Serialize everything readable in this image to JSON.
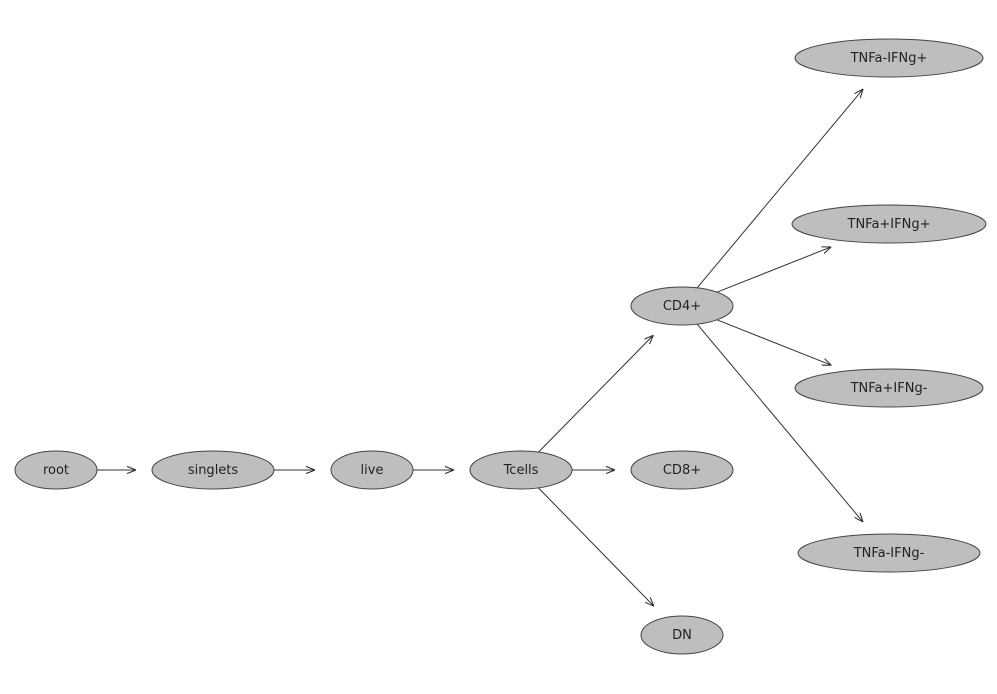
{
  "diagram": {
    "type": "directed-tree",
    "node_fill": "#bebebe",
    "node_stroke": "#444444",
    "edge_color": "#333333",
    "nodes": [
      {
        "id": "root",
        "label": "root"
      },
      {
        "id": "singlets",
        "label": "singlets"
      },
      {
        "id": "live",
        "label": "live"
      },
      {
        "id": "Tcells",
        "label": "Tcells"
      },
      {
        "id": "CD4+",
        "label": "CD4+"
      },
      {
        "id": "CD8+",
        "label": "CD8+"
      },
      {
        "id": "DN",
        "label": "DN"
      },
      {
        "id": "TNFa-IFNg+",
        "label": "TNFa-IFNg+"
      },
      {
        "id": "TNFa+IFNg+",
        "label": "TNFa+IFNg+"
      },
      {
        "id": "TNFa+IFNg-",
        "label": "TNFa+IFNg-"
      },
      {
        "id": "TNFa-IFNg-",
        "label": "TNFa-IFNg-"
      }
    ],
    "edges": [
      {
        "from": "root",
        "to": "singlets"
      },
      {
        "from": "singlets",
        "to": "live"
      },
      {
        "from": "live",
        "to": "Tcells"
      },
      {
        "from": "Tcells",
        "to": "CD4+"
      },
      {
        "from": "Tcells",
        "to": "CD8+"
      },
      {
        "from": "Tcells",
        "to": "DN"
      },
      {
        "from": "CD4+",
        "to": "TNFa-IFNg+"
      },
      {
        "from": "CD4+",
        "to": "TNFa+IFNg+"
      },
      {
        "from": "CD4+",
        "to": "TNFa+IFNg-"
      },
      {
        "from": "CD4+",
        "to": "TNFa-IFNg-"
      }
    ]
  }
}
